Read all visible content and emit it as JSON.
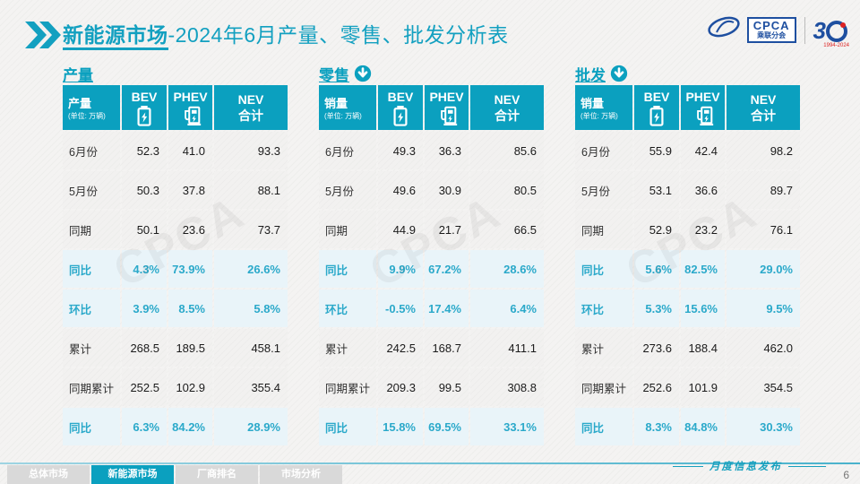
{
  "colors": {
    "accent": "#0ba0bf",
    "highlight_bg": "#e9f4f9",
    "highlight_text": "#2ba9ca"
  },
  "header": {
    "title_bold": "新能源市场",
    "title_rest": "-2024年6月产量、零售、批发分析表",
    "logo": {
      "cpca": "CPCA",
      "sub": "乘联分会",
      "anniversary": "3",
      "years": "1994-2024"
    }
  },
  "watermark": "CPCA",
  "tables": [
    {
      "section_label": "产量",
      "arrow": false,
      "corner_label": "产量",
      "corner_unit": "(单位: 万辆)",
      "columns": {
        "bev": "BEV",
        "phev": "PHEV",
        "nev_line1": "NEV",
        "nev_line2": "合计"
      },
      "rows": [
        {
          "label": "6月份",
          "values": [
            "52.3",
            "41.0",
            "93.3"
          ],
          "highlight": false
        },
        {
          "label": "5月份",
          "values": [
            "50.3",
            "37.8",
            "88.1"
          ],
          "highlight": false
        },
        {
          "label": "同期",
          "values": [
            "50.1",
            "23.6",
            "73.7"
          ],
          "highlight": false
        },
        {
          "label": "同比",
          "values": [
            "4.3%",
            "73.9%",
            "26.6%"
          ],
          "highlight": true
        },
        {
          "label": "环比",
          "values": [
            "3.9%",
            "8.5%",
            "5.8%"
          ],
          "highlight": true
        },
        {
          "label": "累计",
          "values": [
            "268.5",
            "189.5",
            "458.1"
          ],
          "highlight": false
        },
        {
          "label": "同期累计",
          "values": [
            "252.5",
            "102.9",
            "355.4"
          ],
          "highlight": false
        },
        {
          "label": "同比",
          "values": [
            "6.3%",
            "84.2%",
            "28.9%"
          ],
          "highlight": true
        }
      ]
    },
    {
      "section_label": "零售",
      "arrow": true,
      "corner_label": "销量",
      "corner_unit": "(单位: 万辆)",
      "columns": {
        "bev": "BEV",
        "phev": "PHEV",
        "nev_line1": "NEV",
        "nev_line2": "合计"
      },
      "rows": [
        {
          "label": "6月份",
          "values": [
            "49.3",
            "36.3",
            "85.6"
          ],
          "highlight": false
        },
        {
          "label": "5月份",
          "values": [
            "49.6",
            "30.9",
            "80.5"
          ],
          "highlight": false
        },
        {
          "label": "同期",
          "values": [
            "44.9",
            "21.7",
            "66.5"
          ],
          "highlight": false
        },
        {
          "label": "同比",
          "values": [
            "9.9%",
            "67.2%",
            "28.6%"
          ],
          "highlight": true
        },
        {
          "label": "环比",
          "values": [
            "-0.5%",
            "17.4%",
            "6.4%"
          ],
          "highlight": true
        },
        {
          "label": "累计",
          "values": [
            "242.5",
            "168.7",
            "411.1"
          ],
          "highlight": false
        },
        {
          "label": "同期累计",
          "values": [
            "209.3",
            "99.5",
            "308.8"
          ],
          "highlight": false
        },
        {
          "label": "同比",
          "values": [
            "15.8%",
            "69.5%",
            "33.1%"
          ],
          "highlight": true
        }
      ]
    },
    {
      "section_label": "批发",
      "arrow": true,
      "corner_label": "销量",
      "corner_unit": "(单位: 万辆)",
      "columns": {
        "bev": "BEV",
        "phev": "PHEV",
        "nev_line1": "NEV",
        "nev_line2": "合计"
      },
      "rows": [
        {
          "label": "6月份",
          "values": [
            "55.9",
            "42.4",
            "98.2"
          ],
          "highlight": false
        },
        {
          "label": "5月份",
          "values": [
            "53.1",
            "36.6",
            "89.7"
          ],
          "highlight": false
        },
        {
          "label": "同期",
          "values": [
            "52.9",
            "23.2",
            "76.1"
          ],
          "highlight": false
        },
        {
          "label": "同比",
          "values": [
            "5.6%",
            "82.5%",
            "29.0%"
          ],
          "highlight": true
        },
        {
          "label": "环比",
          "values": [
            "5.3%",
            "15.6%",
            "9.5%"
          ],
          "highlight": true
        },
        {
          "label": "累计",
          "values": [
            "273.6",
            "188.4",
            "462.0"
          ],
          "highlight": false
        },
        {
          "label": "同期累计",
          "values": [
            "252.6",
            "101.9",
            "354.5"
          ],
          "highlight": false
        },
        {
          "label": "同比",
          "values": [
            "8.3%",
            "84.8%",
            "30.3%"
          ],
          "highlight": true
        }
      ]
    }
  ],
  "footer": {
    "tabs": [
      {
        "label": "总体市场",
        "active": false
      },
      {
        "label": "新能源市场",
        "active": true
      },
      {
        "label": "厂商排名",
        "active": false
      },
      {
        "label": "市场分析",
        "active": false
      }
    ],
    "release_label": "月度信息发布",
    "page_number": "6"
  }
}
